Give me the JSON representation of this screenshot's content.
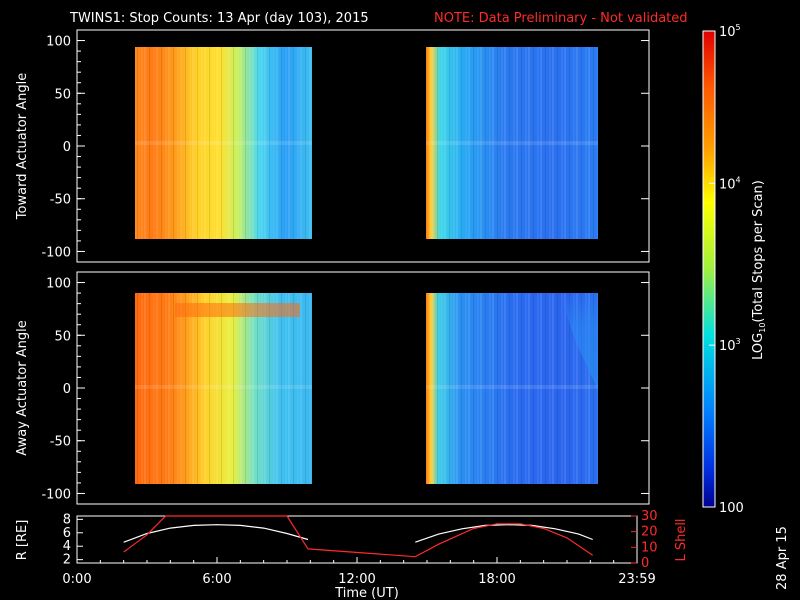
{
  "title": {
    "main": "TWINS1: Stop Counts: 13 Apr (day 103), 2015",
    "note": "NOTE: Data Preliminary - Not validated"
  },
  "date_stamp": "28 Apr 15",
  "colors": {
    "background": "#000000",
    "axes": "#ffffff",
    "note": "#ff2a2a",
    "r_line": "#ffffff",
    "lshell_line": "#ff2a2a"
  },
  "chart_data": [
    {
      "type": "heatmap",
      "name": "toward",
      "ylabel": "Toward Actuator Angle",
      "ylim": [
        -110,
        110
      ],
      "yticks": [
        100,
        50,
        0,
        -50,
        -100
      ],
      "xlim": [
        0,
        24
      ],
      "data_blocks": [
        {
          "start": 2.0,
          "end": 9.9,
          "angle_range": [
            -88,
            90
          ]
        },
        {
          "start": 14.5,
          "end": 22.1,
          "angle_range": [
            -88,
            90
          ]
        }
      ]
    },
    {
      "type": "heatmap",
      "name": "away",
      "ylabel": "Away Actuator Angle",
      "ylim": [
        -110,
        110
      ],
      "yticks": [
        100,
        50,
        0,
        -50,
        -100
      ],
      "xlim": [
        0,
        24
      ],
      "data_blocks": [
        {
          "start": 2.0,
          "end": 9.9,
          "angle_range": [
            -88,
            90
          ]
        },
        {
          "start": 14.5,
          "end": 22.1,
          "angle_range": [
            -88,
            90
          ]
        }
      ]
    },
    {
      "type": "line",
      "name": "orbit",
      "ylabel_left": "R [RE]",
      "ylabel_right": "L Shell",
      "xlabel": "Time (UT)",
      "xlim": [
        0,
        24
      ],
      "xticks": [
        "0:00",
        "6:00",
        "12:00",
        "18:00",
        "23:59"
      ],
      "xtick_values": [
        0,
        6,
        12,
        18,
        24
      ],
      "ylim_left": [
        1.5,
        8.5
      ],
      "yticks_left": [
        2,
        4,
        6,
        8
      ],
      "ylim_right": [
        0,
        30
      ],
      "yticks_right": [
        0,
        10,
        20,
        30
      ],
      "series": [
        {
          "axis": "left",
          "x": [
            2.0,
            3.0,
            4.0,
            5.0,
            6.0,
            7.0,
            8.0,
            9.0,
            9.9
          ],
          "y": [
            4.6,
            5.9,
            6.7,
            7.1,
            7.2,
            7.1,
            6.7,
            5.9,
            5.0
          ]
        },
        {
          "axis": "left",
          "x": [
            14.5,
            15.5,
            16.5,
            17.5,
            18.5,
            19.5,
            20.5,
            21.5,
            22.1
          ],
          "y": [
            4.6,
            5.8,
            6.6,
            7.1,
            7.2,
            7.1,
            6.6,
            5.8,
            5.0
          ]
        },
        {
          "axis": "right",
          "x": [
            2.0,
            3.0,
            3.8,
            9.0,
            9.9,
            14.5,
            15.5,
            17.0,
            18.0,
            19.0,
            20.0,
            21.0,
            22.1
          ],
          "y": [
            7,
            18,
            30,
            30,
            9,
            4,
            12,
            22,
            25,
            25,
            22,
            16,
            5
          ]
        }
      ]
    }
  ],
  "colorbar": {
    "label_main": "LOG",
    "label_sub": "10",
    "label_rest": "(Total Stops per Scan)",
    "ticks": [
      {
        "base": "10",
        "exp": "5",
        "frac": 0.0
      },
      {
        "base": "10",
        "exp": "4",
        "frac": 0.32
      },
      {
        "base": "10",
        "exp": "3",
        "frac": 0.66
      },
      {
        "base": "100",
        "exp": "",
        "frac": 1.0
      }
    ]
  }
}
